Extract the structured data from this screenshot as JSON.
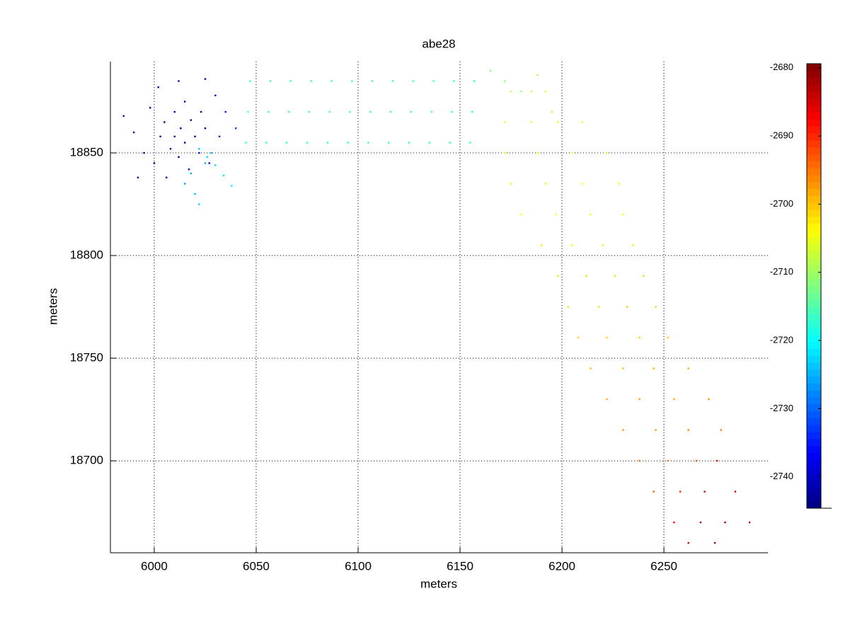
{
  "chart_data": {
    "type": "scatter",
    "title": "abe28",
    "xlabel": "meters",
    "ylabel": "meters",
    "xlim": [
      5978.5,
      6301
    ],
    "ylim": [
      18655.2,
      18894.5
    ],
    "xticks": [
      6000,
      6050,
      6100,
      6150,
      6200,
      6250
    ],
    "yticks": [
      18700,
      18750,
      18800,
      18850
    ],
    "grid": true,
    "colormap": "jet",
    "clim": [
      -2744.6,
      -2679.4
    ],
    "cticks": [
      -2740,
      -2730,
      -2720,
      -2710,
      -2700,
      -2690,
      -2680
    ],
    "x": [
      5990,
      5995,
      5998,
      6000,
      6003,
      6005,
      6006,
      6008,
      6010,
      6010,
      6012,
      6013,
      6015,
      6015,
      6017,
      6018,
      6020,
      6022,
      6023,
      6025,
      6027,
      6030,
      6032,
      5985,
      5992,
      6002,
      6012,
      6025,
      6035,
      6040,
      6018,
      6020,
      6022,
      6015,
      6028,
      6025,
      6022,
      6026,
      6030,
      6034,
      6038,
      6045,
      6046,
      6047,
      6055,
      6056,
      6057,
      6065,
      6066,
      6067,
      6075,
      6076,
      6077,
      6085,
      6086,
      6087,
      6095,
      6096,
      6097,
      6105,
      6106,
      6107,
      6115,
      6116,
      6117,
      6125,
      6126,
      6127,
      6135,
      6136,
      6137,
      6145,
      6146,
      6147,
      6155,
      6156,
      6157,
      6165,
      6172,
      6180,
      6188,
      6195,
      6175,
      6185,
      6192,
      6172,
      6185,
      6198,
      6210,
      6172,
      6188,
      6205,
      6222,
      6175,
      6192,
      6210,
      6228,
      6180,
      6197,
      6214,
      6230,
      6190,
      6205,
      6220,
      6235,
      6198,
      6212,
      6226,
      6240,
      6203,
      6218,
      6232,
      6246,
      6208,
      6222,
      6238,
      6252,
      6214,
      6230,
      6245,
      6262,
      6222,
      6238,
      6255,
      6272,
      6230,
      6246,
      6262,
      6278,
      6238,
      6252,
      6266,
      6276,
      6245,
      6258,
      6270,
      6285,
      6255,
      6268,
      6280,
      6292,
      6262,
      6275
    ],
    "y": [
      18860,
      18850,
      18872,
      18845,
      18858,
      18865,
      18838,
      18852,
      18870,
      18858,
      18848,
      18862,
      18855,
      18875,
      18842,
      18866,
      18858,
      18850,
      18870,
      18862,
      18845,
      18878,
      18858,
      18868,
      18838,
      18882,
      18885,
      18886,
      18870,
      18862,
      18840,
      18830,
      18825,
      18835,
      18850,
      18845,
      18852,
      18848,
      18844,
      18839,
      18834,
      18855,
      18870,
      18885,
      18855,
      18870,
      18885,
      18855,
      18870,
      18885,
      18855,
      18870,
      18885,
      18855,
      18870,
      18885,
      18855,
      18870,
      18885,
      18855,
      18870,
      18885,
      18855,
      18870,
      18885,
      18855,
      18870,
      18885,
      18855,
      18870,
      18885,
      18855,
      18870,
      18885,
      18855,
      18870,
      18885,
      18890,
      18885,
      18880,
      18888,
      18870,
      18880,
      18880,
      18880,
      18865,
      18865,
      18865,
      18865,
      18850,
      18850,
      18850,
      18850,
      18835,
      18835,
      18835,
      18835,
      18820,
      18820,
      18820,
      18820,
      18805,
      18805,
      18805,
      18805,
      18790,
      18790,
      18790,
      18790,
      18775,
      18775,
      18775,
      18775,
      18760,
      18760,
      18760,
      18760,
      18745,
      18745,
      18745,
      18745,
      18730,
      18730,
      18730,
      18730,
      18715,
      18715,
      18715,
      18715,
      18700,
      18700,
      18700,
      18700,
      18685,
      18685,
      18685,
      18685,
      18670,
      18670,
      18670,
      18670,
      18660,
      18660
    ],
    "z": [
      -2743,
      -2742,
      -2741,
      -2742,
      -2743,
      -2742,
      -2740,
      -2742,
      -2741,
      -2743,
      -2742,
      -2742,
      -2743,
      -2741,
      -2740,
      -2742,
      -2742,
      -2739,
      -2741,
      -2740,
      -2738,
      -2740,
      -2738,
      -2742,
      -2741,
      -2740,
      -2739,
      -2737,
      -2735,
      -2733,
      -2725,
      -2724,
      -2723,
      -2726,
      -2724,
      -2725,
      -2723,
      -2722,
      -2722,
      -2721,
      -2721,
      -2717,
      -2716,
      -2716,
      -2717,
      -2716,
      -2716,
      -2717,
      -2716,
      -2716,
      -2717,
      -2716,
      -2716,
      -2717,
      -2716,
      -2716,
      -2717,
      -2716,
      -2716,
      -2717,
      -2716,
      -2716,
      -2717,
      -2716,
      -2716,
      -2717,
      -2716,
      -2716,
      -2717,
      -2716,
      -2716,
      -2718,
      -2717,
      -2717,
      -2719,
      -2719,
      -2718,
      -2712,
      -2711,
      -2710,
      -2709,
      -2708,
      -2707,
      -2707,
      -2706,
      -2706,
      -2706,
      -2706,
      -2706,
      -2705,
      -2705,
      -2705,
      -2705,
      -2705,
      -2705,
      -2704,
      -2704,
      -2704,
      -2704,
      -2704,
      -2704,
      -2703,
      -2703,
      -2703,
      -2703,
      -2702,
      -2702,
      -2702,
      -2702,
      -2702,
      -2702,
      -2701,
      -2701,
      -2701,
      -2701,
      -2701,
      -2701,
      -2700,
      -2700,
      -2699,
      -2699,
      -2699,
      -2698,
      -2698,
      -2697,
      -2697,
      -2697,
      -2696,
      -2695,
      -2696,
      -2695,
      -2693,
      -2686,
      -2694,
      -2690,
      -2686,
      -2684,
      -2688,
      -2685,
      -2683,
      -2682,
      -2684,
      -2682
    ]
  }
}
